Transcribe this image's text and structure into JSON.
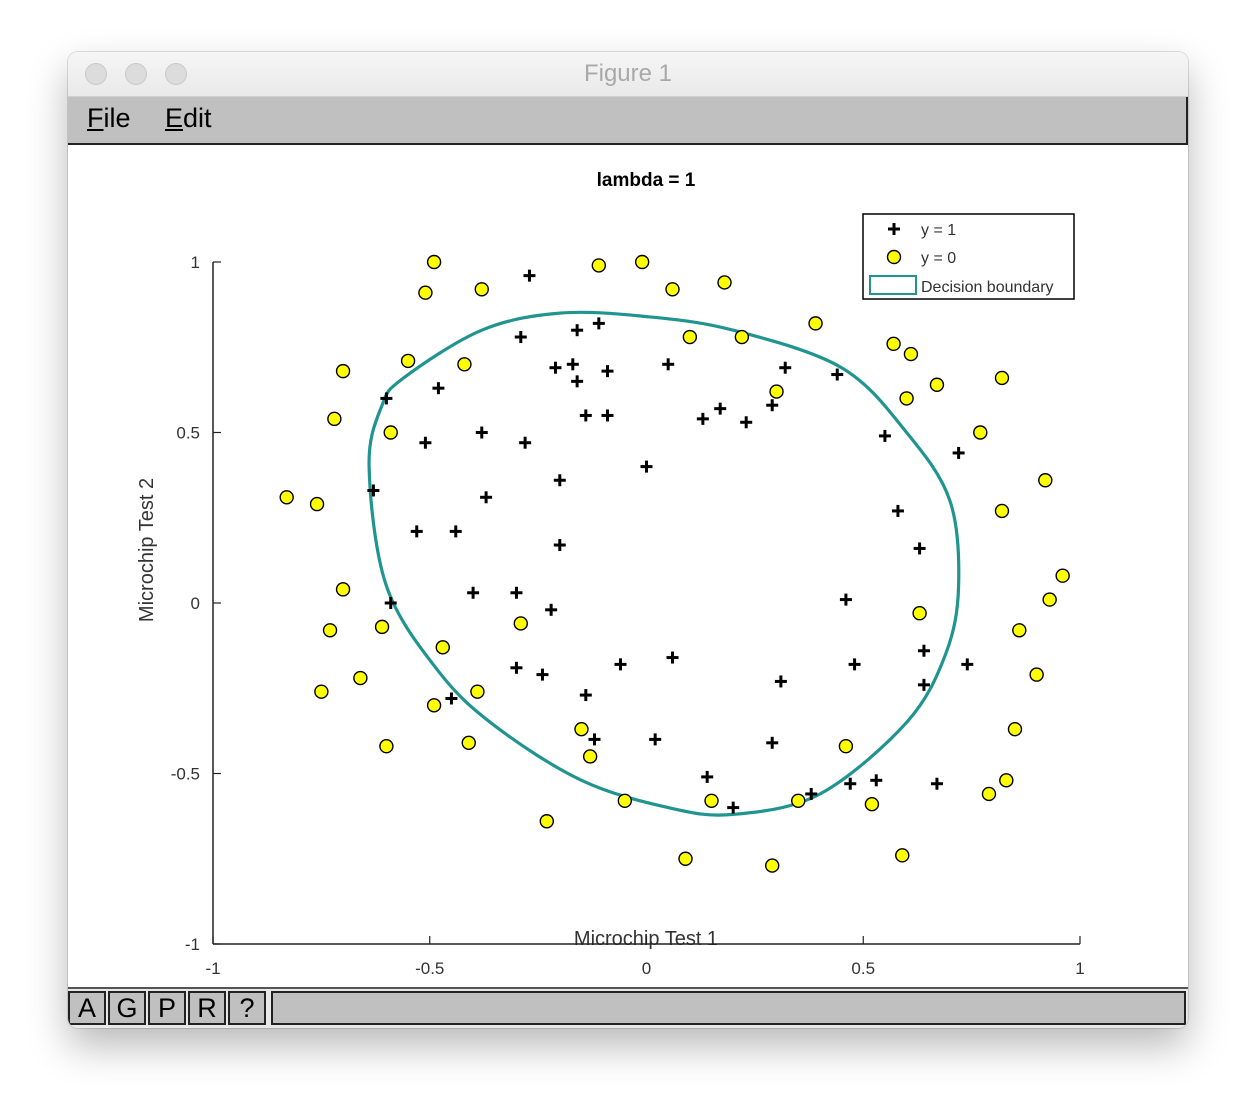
{
  "window": {
    "title": "Figure 1"
  },
  "menu": {
    "file": "File",
    "edit": "Edit"
  },
  "toolbar": {
    "buttons": [
      "A",
      "G",
      "P",
      "R",
      "?"
    ]
  },
  "chart_data": {
    "type": "scatter",
    "title": "lambda = 1",
    "xlabel": "Microchip Test 1",
    "ylabel": "Microchip Test 2",
    "xlim": [
      -1,
      1
    ],
    "ylim": [
      -1,
      1
    ],
    "xticks": [
      "-1",
      "-0.5",
      "0",
      "0.5",
      "1"
    ],
    "yticks": [
      "-1",
      "-0.5",
      "0",
      "0.5",
      "1"
    ],
    "grid": false,
    "legend_position": "top-right",
    "series": [
      {
        "name": "y = 1",
        "marker": "plus",
        "color": "#000000",
        "x": [
          -0.27,
          -0.29,
          -0.16,
          -0.11,
          -0.21,
          -0.17,
          -0.16,
          -0.09,
          0.05,
          -0.6,
          -0.48,
          -0.51,
          -0.38,
          -0.28,
          -0.14,
          -0.09,
          0,
          -0.2,
          -0.63,
          -0.37,
          -0.53,
          -0.44,
          -0.2,
          -0.59,
          -0.4,
          -0.3,
          -0.22,
          -0.3,
          -0.24,
          -0.14,
          -0.06,
          0.06,
          -0.12,
          0.02,
          0.14,
          0.17,
          0.23,
          0.13,
          0.2,
          0.29,
          0.32,
          0.31,
          0.44,
          0.55,
          0.58,
          0.63,
          0.46,
          0.64,
          0.72,
          0.74,
          0.48,
          0.64,
          0.29,
          0.38,
          0.47,
          0.53,
          0.67,
          -0.45
        ],
        "y": [
          0.96,
          0.78,
          0.8,
          0.82,
          0.69,
          0.7,
          0.65,
          0.68,
          0.7,
          0.6,
          0.63,
          0.47,
          0.5,
          0.47,
          0.55,
          0.55,
          0.4,
          0.36,
          0.33,
          0.31,
          0.21,
          0.21,
          0.17,
          0,
          0.03,
          0.03,
          -0.02,
          -0.19,
          -0.21,
          -0.27,
          -0.18,
          -0.16,
          -0.4,
          -0.4,
          -0.51,
          0.57,
          0.53,
          0.54,
          -0.6,
          0.58,
          0.69,
          -0.23,
          0.67,
          0.49,
          0.27,
          0.16,
          0.01,
          -0.14,
          0.44,
          -0.18,
          -0.18,
          -0.24,
          -0.41,
          -0.56,
          -0.53,
          -0.52,
          -0.53,
          -0.28
        ]
      },
      {
        "name": "y = 0",
        "marker": "circle",
        "color": "#ffff00",
        "x": [
          -0.49,
          -0.51,
          -0.38,
          -0.11,
          -0.01,
          0.06,
          0.18,
          0.39,
          0.1,
          0.22,
          -0.42,
          -0.55,
          -0.7,
          -0.72,
          -0.59,
          -0.83,
          -0.76,
          -0.7,
          -0.73,
          -0.61,
          -0.66,
          -0.75,
          -0.6,
          -0.47,
          -0.49,
          -0.39,
          -0.41,
          -0.29,
          -0.23,
          -0.15,
          -0.13,
          -0.05,
          0.09,
          0.15,
          0.29,
          0.35,
          0.46,
          0.52,
          0.59,
          0.3,
          0.57,
          0.61,
          0.6,
          0.67,
          0.77,
          0.82,
          0.82,
          0.92,
          0.96,
          0.93,
          0.86,
          0.9,
          0.85,
          0.83,
          0.79,
          0.63
        ],
        "y": [
          1,
          0.91,
          0.92,
          0.99,
          1,
          0.92,
          0.94,
          0.82,
          0.78,
          0.78,
          0.7,
          0.71,
          0.68,
          0.54,
          0.5,
          0.31,
          0.29,
          0.04,
          -0.08,
          -0.07,
          -0.22,
          -0.26,
          -0.42,
          -0.13,
          -0.3,
          -0.26,
          -0.41,
          -0.06,
          -0.64,
          -0.37,
          -0.45,
          -0.58,
          -0.75,
          -0.58,
          -0.77,
          -0.58,
          -0.42,
          -0.59,
          -0.74,
          0.62,
          0.76,
          0.73,
          0.6,
          0.64,
          0.5,
          0.66,
          0.27,
          0.36,
          0.08,
          0.01,
          -0.08,
          -0.21,
          -0.37,
          -0.52,
          -0.56,
          -0.03
        ]
      },
      {
        "name": "Decision boundary",
        "type": "line",
        "color": "#20948e",
        "shape": "closed curve",
        "x": [
          -0.56,
          -0.38,
          -0.2,
          0,
          0.2,
          0.45,
          0.6,
          0.7,
          0.72,
          0.69,
          0.6,
          0.4,
          0.2,
          0.05,
          -0.15,
          -0.35,
          -0.48,
          -0.6,
          -0.64,
          -0.61,
          -0.56
        ],
        "y": [
          0.66,
          0.8,
          0.85,
          0.84,
          0.8,
          0.69,
          0.5,
          0.3,
          0.05,
          -0.15,
          -0.35,
          -0.56,
          -0.62,
          -0.6,
          -0.52,
          -0.36,
          -0.2,
          0.05,
          0.4,
          0.58,
          0.66
        ]
      }
    ]
  }
}
